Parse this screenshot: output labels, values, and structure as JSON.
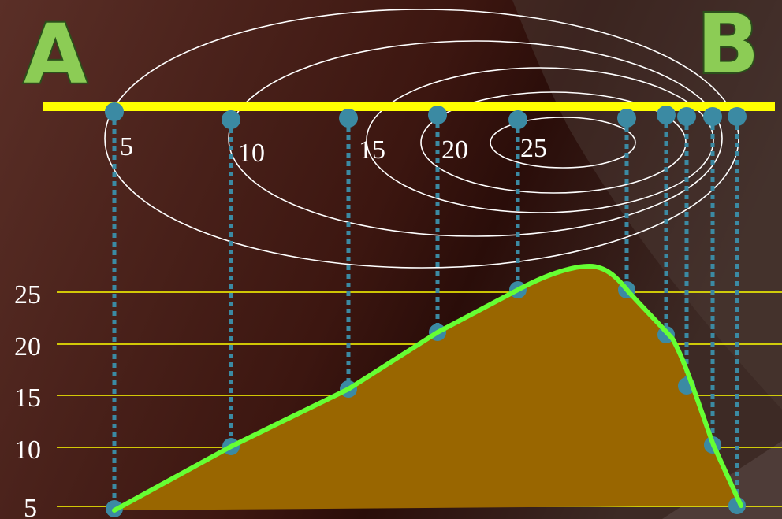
{
  "points": {
    "start": "A",
    "end": "B"
  },
  "contour_labels": [
    "5",
    "10",
    "15",
    "20",
    "25"
  ],
  "elevation_levels": [
    "25",
    "20",
    "15",
    "10",
    "5"
  ],
  "colors": {
    "profile_line": "#66ff33",
    "profile_fill": "#996600",
    "section_line": "#ffff00",
    "guide_dots": "#3b8aa3",
    "contours": "#ffffff",
    "level_lines": "#ffff00"
  }
}
